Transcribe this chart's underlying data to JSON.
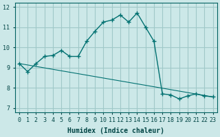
{
  "xlabel": "Humidex (Indice chaleur)",
  "ylabel": "",
  "bg_color": "#cce8e8",
  "grid_color": "#a0c8c8",
  "line_color": "#007070",
  "xlim": [
    -0.5,
    23.5
  ],
  "ylim": [
    6.8,
    12.2
  ],
  "xticks": [
    0,
    1,
    2,
    3,
    4,
    5,
    6,
    7,
    8,
    9,
    10,
    11,
    12,
    13,
    14,
    15,
    16,
    17,
    18,
    19,
    20,
    21,
    22,
    23
  ],
  "yticks": [
    7,
    8,
    9,
    10,
    11,
    12
  ],
  "main_x": [
    0,
    1,
    2,
    3,
    4,
    5,
    6,
    7,
    8,
    9,
    10,
    11,
    12,
    13,
    14,
    15,
    16,
    17,
    18,
    19,
    20,
    21,
    22,
    23
  ],
  "main_y": [
    9.2,
    8.8,
    9.2,
    9.55,
    9.6,
    9.85,
    9.55,
    9.55,
    10.3,
    10.8,
    11.25,
    11.35,
    11.6,
    11.25,
    11.7,
    11.0,
    10.3,
    7.7,
    7.65,
    7.45,
    7.6,
    7.7,
    7.6,
    7.55
  ],
  "trend_x": [
    0,
    23
  ],
  "trend_y": [
    9.2,
    7.55
  ]
}
